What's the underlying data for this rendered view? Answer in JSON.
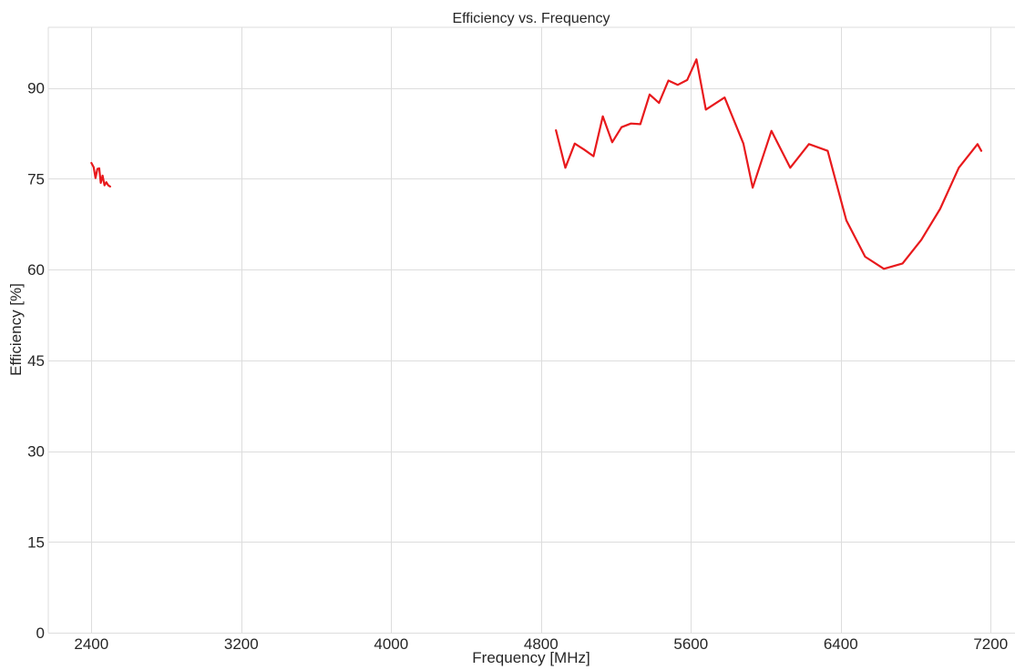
{
  "chart_data": {
    "type": "line",
    "title": "Efficiency vs. Frequency",
    "xlabel": "Frequency [MHz]",
    "ylabel": "Efficiency [%]",
    "xlim": [
      2170,
      7330
    ],
    "ylim": [
      0,
      100
    ],
    "xticks": [
      2400,
      3200,
      4000,
      4800,
      5600,
      6400,
      7200
    ],
    "yticks": [
      0,
      15,
      30,
      45,
      60,
      75,
      90
    ],
    "grid": true,
    "legend": "none",
    "series": [
      {
        "color": "#e8191c",
        "segments": [
          {
            "x": [
              2400,
              2412,
              2422,
              2432,
              2442,
              2450,
              2460,
              2470,
              2480,
              2490,
              2500
            ],
            "y": [
              77.6,
              76.9,
              75.1,
              76.6,
              76.7,
              74.3,
              75.5,
              73.9,
              74.4,
              73.9,
              73.7
            ]
          },
          {
            "x": [
              4880,
              4930,
              4980,
              5030,
              5080,
              5130,
              5180,
              5230,
              5280,
              5330,
              5380,
              5430,
              5480,
              5530,
              5580,
              5630,
              5680,
              5780,
              5880,
              5930,
              6030,
              6130,
              6230,
              6330,
              6430,
              6530,
              6630,
              6730,
              6830,
              6930,
              7030,
              7130,
              7150
            ],
            "y": [
              83.0,
              76.8,
              80.8,
              79.8,
              78.7,
              85.3,
              81.0,
              83.5,
              84.1,
              84.0,
              88.9,
              87.5,
              91.2,
              90.5,
              91.3,
              94.7,
              86.4,
              88.4,
              80.8,
              73.5,
              82.9,
              76.8,
              80.7,
              79.6,
              68.1,
              62.1,
              60.1,
              61.0,
              64.9,
              70.0,
              76.8,
              80.7,
              79.6
            ]
          }
        ]
      }
    ]
  }
}
